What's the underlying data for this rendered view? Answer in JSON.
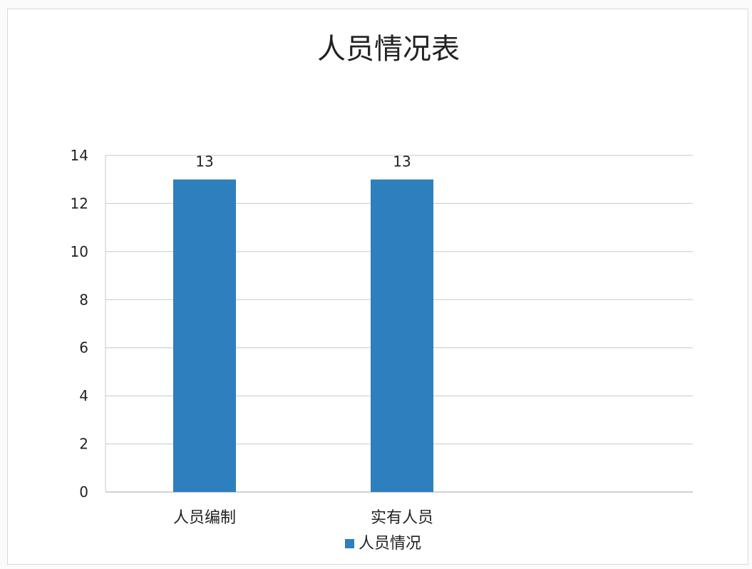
{
  "chart_data": {
    "type": "bar",
    "title": "人员情况表",
    "categories": [
      "人员编制",
      "实有人员"
    ],
    "series": [
      {
        "name": "人员情况",
        "values": [
          13,
          13
        ],
        "color": "#2e7fbd"
      }
    ],
    "ylim": [
      0,
      14
    ],
    "yticks": [
      0,
      2,
      4,
      6,
      8,
      10,
      12,
      14
    ],
    "data_labels": true,
    "grid": true,
    "legend_position": "bottom"
  }
}
